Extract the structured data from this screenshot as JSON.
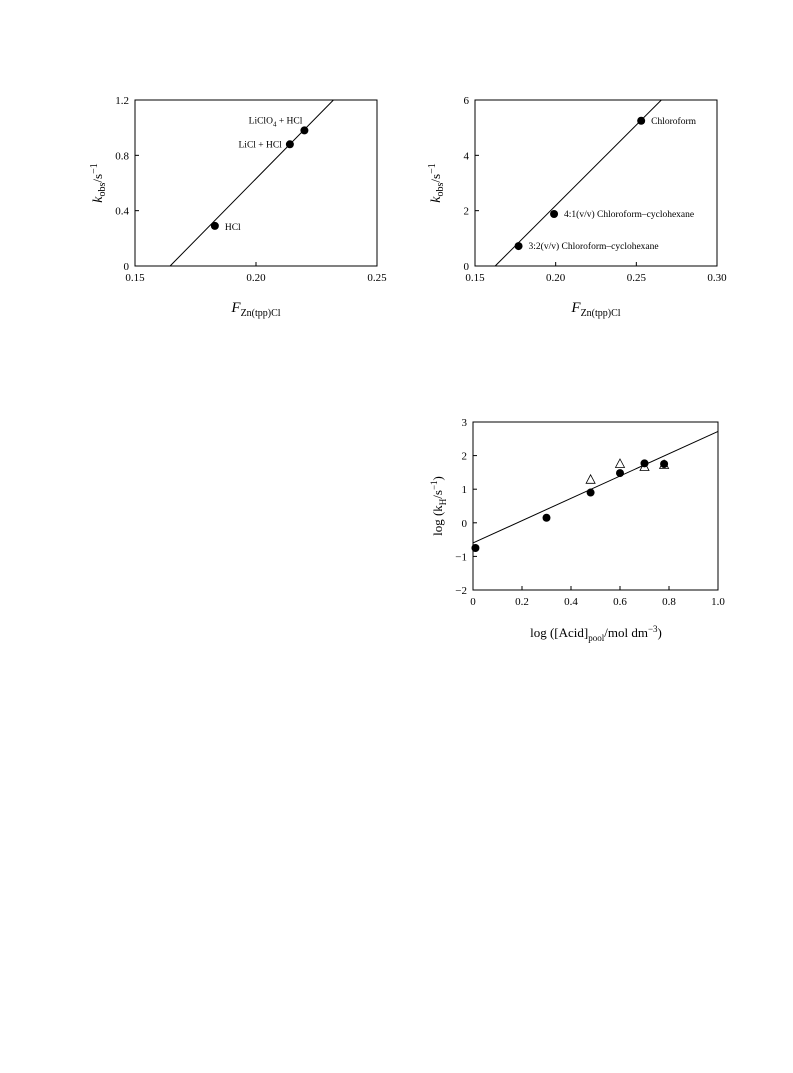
{
  "chart_data": [
    {
      "type": "scatter",
      "xlabel": {
        "main": "F",
        "sub": "Zn(tpp)Cl"
      },
      "ylabel": {
        "main": "k",
        "sub": "obs",
        "unit": "/s",
        "sup": "−1"
      },
      "xlim": [
        0.15,
        0.25
      ],
      "ylim": [
        0,
        1.2
      ],
      "xticks": [
        "0.15",
        "0.20",
        "0.25"
      ],
      "yticks": [
        "0",
        "0.4",
        "0.8",
        "1.2"
      ],
      "points": [
        {
          "x": 0.183,
          "y": 0.29,
          "label": "HCl"
        },
        {
          "x": 0.214,
          "y": 0.88,
          "label": "LiCl + HCl"
        },
        {
          "x": 0.22,
          "y": 0.98,
          "label": "LiClO",
          "label_sub": "4",
          "label_tail": " + HCl"
        }
      ],
      "fit_line": [
        [
          0.1645,
          0
        ],
        [
          0.232,
          1.2
        ]
      ],
      "grid": false
    },
    {
      "type": "scatter",
      "xlabel": {
        "main": "F",
        "sub": "Zn(tpp)Cl"
      },
      "ylabel": {
        "main": "k",
        "sub": "obs",
        "unit": "/s",
        "sup": "−1"
      },
      "xlim": [
        0.15,
        0.3
      ],
      "ylim": [
        0,
        6
      ],
      "xticks": [
        "0.15",
        "0.20",
        "0.25",
        "0.30"
      ],
      "yticks": [
        "0",
        "2",
        "4",
        "6"
      ],
      "points": [
        {
          "x": 0.177,
          "y": 0.72,
          "label": "3:2(v/v) Chloroform–cyclohexane"
        },
        {
          "x": 0.199,
          "y": 1.88,
          "label": "4:1(v/v) Chloroform–cyclohexane"
        },
        {
          "x": 0.253,
          "y": 5.25,
          "label": "Chloroform"
        }
      ],
      "fit_line": [
        [
          0.1625,
          0
        ],
        [
          0.2655,
          6
        ]
      ],
      "grid": false
    },
    {
      "type": "scatter",
      "xlabel": {
        "pre": "log ([Acid]",
        "sub": "pool",
        "post": "/mol dm",
        "sup": "−3",
        "tail": ")"
      },
      "ylabel": {
        "pre": "log (k",
        "sub": "H",
        "post": "/s",
        "sup": "−1",
        "tail": ")"
      },
      "xlim": [
        0,
        1.0
      ],
      "ylim": [
        -2,
        3
      ],
      "xticks": [
        "0",
        "0.2",
        "0.4",
        "0.6",
        "0.8",
        "1.0"
      ],
      "yticks": [
        "−2",
        "−1",
        "0",
        "1",
        "2",
        "3"
      ],
      "series": [
        {
          "marker": "filled-circle",
          "points": [
            [
              0.01,
              -0.75
            ],
            [
              0.3,
              0.15
            ],
            [
              0.48,
              0.9
            ],
            [
              0.6,
              1.48
            ],
            [
              0.7,
              1.77
            ],
            [
              0.78,
              1.75
            ]
          ]
        },
        {
          "marker": "open-triangle",
          "points": [
            [
              0.48,
              1.28
            ],
            [
              0.6,
              1.75
            ],
            [
              0.7,
              1.66
            ],
            [
              0.78,
              1.72
            ]
          ]
        }
      ],
      "fit_line": [
        [
          0,
          -0.6
        ],
        [
          1.0,
          2.72
        ]
      ],
      "grid": false
    }
  ]
}
